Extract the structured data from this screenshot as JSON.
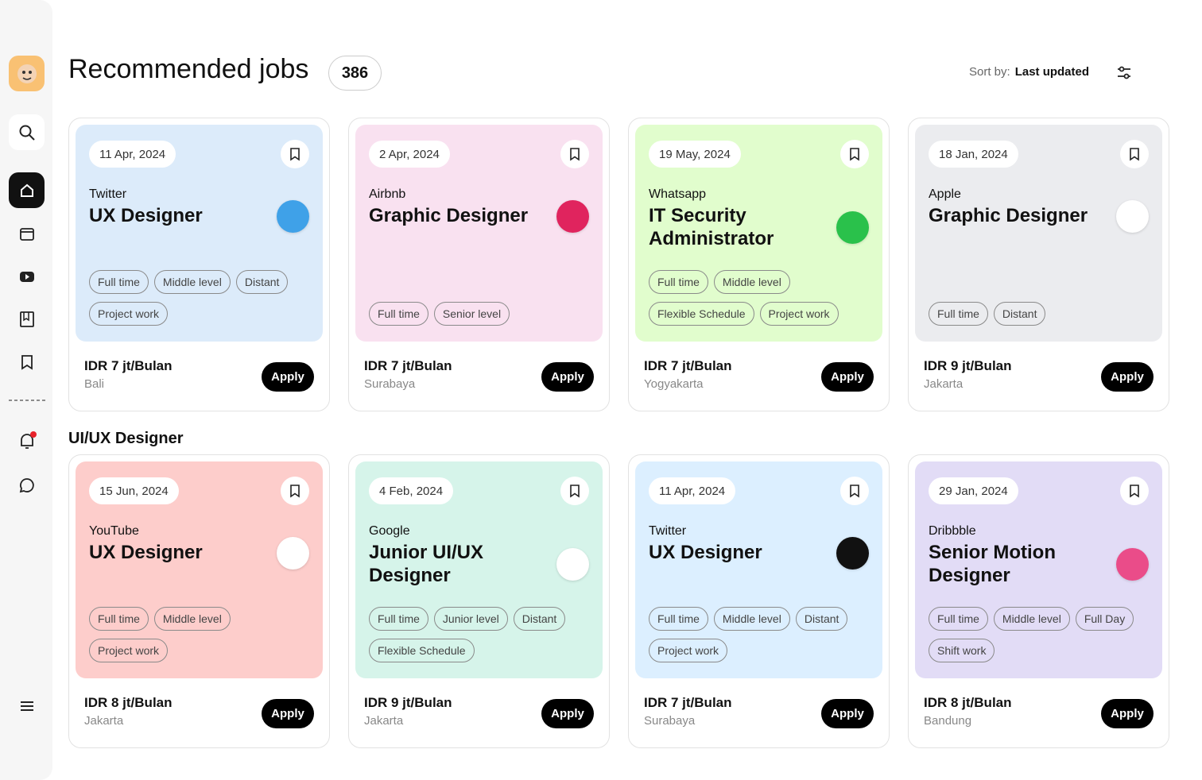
{
  "header": {
    "title": "Recommended jobs",
    "count": "386",
    "sort_label": "Sort by:",
    "sort_value": "Last updated"
  },
  "apply_label": "Apply",
  "recommended": [
    {
      "date": "11 Apr, 2024",
      "company": "Twitter",
      "title": "UX Designer",
      "tags": [
        "Full time",
        "Middle level",
        "Distant",
        "Project work"
      ],
      "salary": "IDR 7 jt/Bulan",
      "location": "Bali",
      "color": "#dcebfa",
      "logo_color": "#3fa1e8"
    },
    {
      "date": "2 Apr, 2024",
      "company": "Airbnb",
      "title": "Graphic Designer",
      "tags": [
        "Full time",
        "Senior level"
      ],
      "salary": "IDR 7 jt/Bulan",
      "location": "Surabaya",
      "color": "#f9e1f0",
      "logo_color": "#e0245e"
    },
    {
      "date": "19 May, 2024",
      "company": "Whatsapp",
      "title": "IT Security Administrator",
      "tags": [
        "Full time",
        "Middle level",
        "Flexible Schedule",
        "Project work"
      ],
      "salary": "IDR 7 jt/Bulan",
      "location": "Yogyakarta",
      "color": "#e1fdcd",
      "logo_color": "#2ac14b"
    },
    {
      "date": "18 Jan, 2024",
      "company": "Apple",
      "title": "Graphic Designer",
      "tags": [
        "Full time",
        "Distant"
      ],
      "salary": "IDR 9 jt/Bulan",
      "location": "Jakarta",
      "color": "#ebecef",
      "logo_color": "#ffffff"
    }
  ],
  "section": {
    "title": "UI/UX Designer",
    "jobs": [
      {
        "date": "15 Jun, 2024",
        "company": "YouTube",
        "title": "UX Designer",
        "tags": [
          "Full time",
          "Middle level",
          "Project work"
        ],
        "salary": "IDR 8 jt/Bulan",
        "location": "Jakarta",
        "color": "#fdcdcb",
        "logo_color": "#ffffff"
      },
      {
        "date": "4 Feb, 2024",
        "company": "Google",
        "title": "Junior UI/UX Designer",
        "tags": [
          "Full time",
          "Junior level",
          "Distant",
          "Flexible Schedule"
        ],
        "salary": "IDR 9 jt/Bulan",
        "location": "Jakarta",
        "color": "#d6f4ea",
        "logo_color": "#ffffff"
      },
      {
        "date": "11 Apr, 2024",
        "company": "Twitter",
        "title": "UX Designer",
        "tags": [
          "Full time",
          "Middle level",
          "Distant",
          "Project work"
        ],
        "salary": "IDR 7 jt/Bulan",
        "location": "Surabaya",
        "color": "#dcefff",
        "logo_color": "#111111"
      },
      {
        "date": "29 Jan, 2024",
        "company": "Dribbble",
        "title": "Senior Motion Designer",
        "tags": [
          "Full time",
          "Middle level",
          "Full Day",
          "Shift work"
        ],
        "salary": "IDR 8 jt/Bulan",
        "location": "Bandung",
        "color": "#e2dcf6",
        "logo_color": "#ea4c89"
      }
    ]
  }
}
